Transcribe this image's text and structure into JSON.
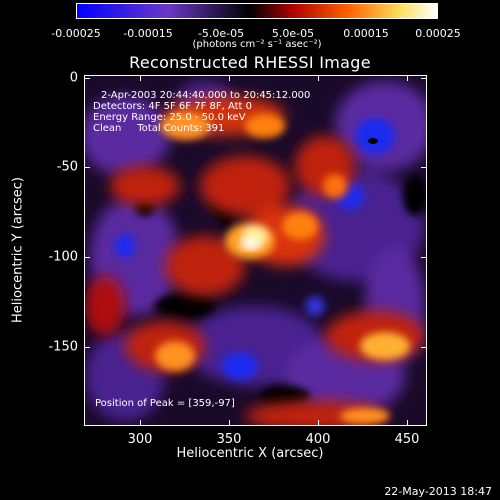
{
  "colorbar": {
    "labels": [
      "-0.00025",
      "-0.00015",
      "-5.0e-05",
      "5.0e-05",
      "0.00015",
      "0.00025"
    ],
    "units": "(photons cm⁻² s⁻¹ asec⁻²)",
    "colors": [
      "#0000ff",
      "#6040c0",
      "#000000",
      "#c01010",
      "#ff6000",
      "#ffff80",
      "#ffffff"
    ]
  },
  "title": "Reconstructed RHESSI Image",
  "info": {
    "time_range": "2-Apr-2003 20:44:40.000 to 20:45:12.000",
    "detectors": "Detectors: 4F 5F 6F 7F 8F, Att 0",
    "energy": "Energy Range: 25.0 - 50.0 keV",
    "clean": "Clean     Total Counts: 391",
    "peak": "Position of Peak = [359,-97]"
  },
  "axes": {
    "xlabel": "Heliocentric X (arcsec)",
    "ylabel": "Heliocentric Y (arcsec)",
    "xticks": [
      "300",
      "350",
      "400",
      "450"
    ],
    "yticks": [
      "0",
      "-50",
      "-100",
      "-150"
    ]
  },
  "footer": {
    "date": "22-May-2013 18:47"
  }
}
